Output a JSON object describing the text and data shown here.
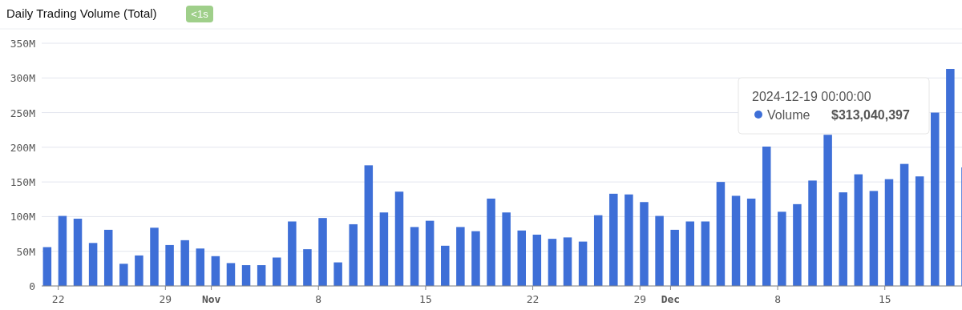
{
  "chart_data": {
    "type": "bar",
    "title": "Daily Trading Volume (Total)",
    "annotations": [
      "<1s",
      "2024-12-19 00:00:00",
      "$313,040,397"
    ],
    "x": [
      "2024-10-21",
      "2024-10-22",
      "2024-10-23",
      "2024-10-24",
      "2024-10-25",
      "2024-10-26",
      "2024-10-27",
      "2024-10-28",
      "2024-10-29",
      "2024-10-30",
      "2024-10-31",
      "2024-11-01",
      "2024-11-02",
      "2024-11-03",
      "2024-11-04",
      "2024-11-05",
      "2024-11-06",
      "2024-11-07",
      "2024-11-08",
      "2024-11-09",
      "2024-11-10",
      "2024-11-11",
      "2024-11-12",
      "2024-11-13",
      "2024-11-14",
      "2024-11-15",
      "2024-11-16",
      "2024-11-17",
      "2024-11-18",
      "2024-11-19",
      "2024-11-20",
      "2024-11-21",
      "2024-11-22",
      "2024-11-23",
      "2024-11-24",
      "2024-11-25",
      "2024-11-26",
      "2024-11-27",
      "2024-11-28",
      "2024-11-29",
      "2024-11-30",
      "2024-12-01",
      "2024-12-02",
      "2024-12-03",
      "2024-12-04",
      "2024-12-05",
      "2024-12-06",
      "2024-12-07",
      "2024-12-08",
      "2024-12-09",
      "2024-12-10",
      "2024-12-11",
      "2024-12-12",
      "2024-12-13",
      "2024-12-14",
      "2024-12-15",
      "2024-12-16",
      "2024-12-17",
      "2024-12-18",
      "2024-12-19",
      "2024-12-20"
    ],
    "series": [
      {
        "name": "Volume",
        "color": "#3e6fd7",
        "values": [
          56,
          101,
          97,
          62,
          81,
          32,
          44,
          84,
          59,
          66,
          54,
          43,
          33,
          30,
          30,
          41,
          93,
          53,
          98,
          34,
          89,
          174,
          106,
          136,
          85,
          94,
          58,
          85,
          79,
          126,
          106,
          80,
          74,
          68,
          70,
          64,
          102,
          133,
          132,
          121,
          101,
          81,
          93,
          93,
          150,
          130,
          126,
          201,
          107,
          118,
          152,
          218,
          135,
          161,
          137,
          154,
          176,
          158,
          250,
          313,
          171
        ]
      }
    ],
    "xlim": [
      "2024-10-20T22:00",
      "2024-12-20T01:00"
    ],
    "xticks": [
      {
        "value": "2024-10-22",
        "label": "22"
      },
      {
        "value": "2024-10-29",
        "label": "29"
      },
      {
        "value": "2024-11-01",
        "label": "Nov"
      },
      {
        "value": "2024-11-08",
        "label": "8"
      },
      {
        "value": "2024-11-15",
        "label": "15"
      },
      {
        "value": "2024-11-22",
        "label": "22"
      },
      {
        "value": "2024-11-29",
        "label": "29"
      },
      {
        "value": "2024-12-01",
        "label": "Dec"
      },
      {
        "value": "2024-12-08",
        "label": "8"
      },
      {
        "value": "2024-12-15",
        "label": "15"
      }
    ],
    "ylim": [
      0,
      350
    ],
    "yticks": [
      {
        "value": 0,
        "label": "0"
      },
      {
        "value": 50,
        "label": "50M"
      },
      {
        "value": 100,
        "label": "100M"
      },
      {
        "value": 150,
        "label": "150M"
      },
      {
        "value": 200,
        "label": "200M"
      },
      {
        "value": 250,
        "label": "250M"
      },
      {
        "value": 300,
        "label": "300M"
      },
      {
        "value": 350,
        "label": "350M"
      }
    ],
    "grid": "y",
    "legend": "top right"
  }
}
